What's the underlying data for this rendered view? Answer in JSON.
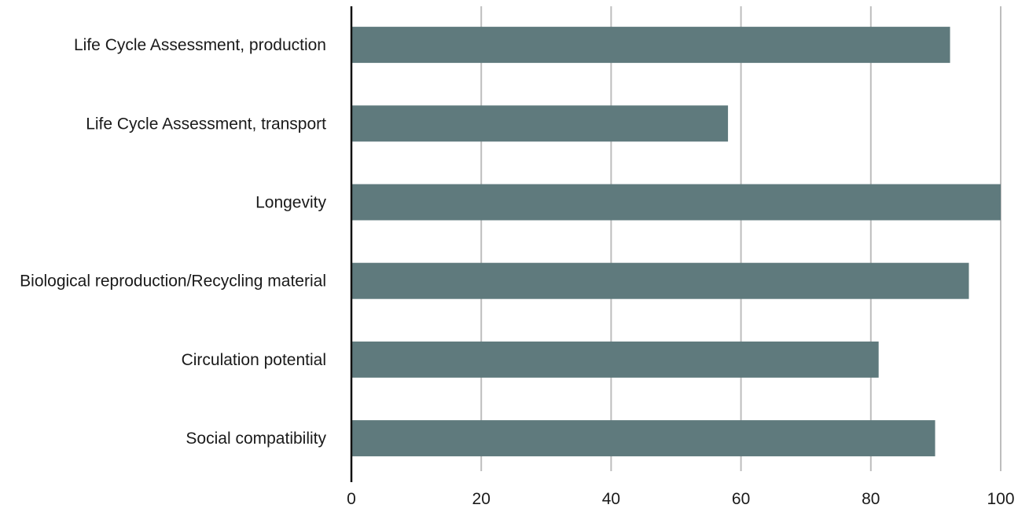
{
  "chart_data": {
    "type": "bar",
    "orientation": "horizontal",
    "categories": [
      "Life Cycle Assessment, production",
      "Life Cycle Assessment, transport",
      "Longevity",
      "Biological reproduction/Recycling material",
      "Circulation potential",
      "Social compatibility"
    ],
    "values": [
      92.2,
      58,
      100,
      95.1,
      81.2,
      89.9
    ],
    "xlim": [
      0,
      100
    ],
    "xticks": [
      0,
      20,
      40,
      60,
      80,
      100
    ],
    "grid": "vertical",
    "bar_color": "#5f7a7d",
    "grid_color": "#bdbdbd",
    "axis_color": "#111111",
    "title": "",
    "xlabel": "",
    "ylabel": ""
  }
}
